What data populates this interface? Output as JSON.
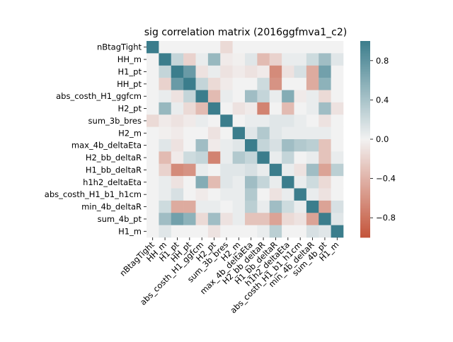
{
  "chart_data": {
    "type": "heatmap",
    "title": "sig correlation matrix (2016ggfmva1_c2)",
    "labels": [
      "nBtagTight",
      "HH_m",
      "H1_pt",
      "HH_pt",
      "abs_costh_H1_ggfcm",
      "H2_pt",
      "sum_3b_bres",
      "H2_m",
      "max_4b_deltaEta",
      "H2_bb_deltaR",
      "H1_bb_deltaR",
      "h1h2_deltaEta",
      "abs_costh_H1_b1_h1cm",
      "min_4b_deltaR",
      "sum_4b_pt",
      "H1_m"
    ],
    "matrix": [
      [
        1.0,
        0.0,
        0.0,
        0.0,
        0.0,
        0.0,
        -0.15,
        0.0,
        0.0,
        0.0,
        0.0,
        0.0,
        0.0,
        0.0,
        0.0,
        0.0
      ],
      [
        0.0,
        1.0,
        0.25,
        -0.2,
        0.05,
        0.5,
        -0.05,
        -0.02,
        0.1,
        -0.35,
        -0.2,
        0.05,
        0.05,
        0.2,
        0.45,
        0.1
      ],
      [
        0.0,
        0.25,
        1.0,
        0.75,
        -0.1,
        0.05,
        -0.1,
        -0.05,
        -0.1,
        -0.05,
        -0.65,
        -0.1,
        0.15,
        -0.45,
        0.7,
        0.0
      ],
      [
        0.0,
        -0.2,
        0.75,
        1.0,
        0.25,
        -0.15,
        -0.05,
        0.0,
        0.0,
        0.2,
        -0.6,
        0.0,
        0.0,
        -0.45,
        0.55,
        0.0
      ],
      [
        0.0,
        0.05,
        -0.1,
        0.25,
        1.0,
        -0.35,
        0.05,
        0.0,
        0.45,
        0.25,
        0.05,
        0.6,
        -0.05,
        0.05,
        -0.15,
        0.0
      ],
      [
        0.0,
        0.5,
        0.05,
        -0.15,
        -0.35,
        1.0,
        0.0,
        -0.1,
        -0.05,
        -0.7,
        0.0,
        -0.35,
        0.0,
        0.05,
        0.45,
        -0.1
      ],
      [
        -0.15,
        -0.05,
        -0.1,
        -0.05,
        0.05,
        0.0,
        1.0,
        0.0,
        0.05,
        0.05,
        0.1,
        0.1,
        0.05,
        0.0,
        -0.1,
        0.0
      ],
      [
        0.0,
        -0.02,
        -0.05,
        0.0,
        0.0,
        -0.1,
        0.0,
        1.0,
        0.1,
        0.35,
        0.1,
        0.05,
        0.05,
        0.05,
        0.05,
        0.0
      ],
      [
        0.0,
        0.1,
        -0.1,
        0.0,
        0.45,
        -0.05,
        0.05,
        0.1,
        1.0,
        0.25,
        0.15,
        0.45,
        0.35,
        0.3,
        -0.3,
        0.0
      ],
      [
        0.0,
        -0.35,
        -0.05,
        0.2,
        0.25,
        -0.7,
        0.05,
        0.35,
        0.25,
        1.0,
        0.05,
        0.25,
        0.0,
        0.05,
        -0.3,
        0.05
      ],
      [
        0.0,
        -0.2,
        -0.65,
        -0.6,
        0.05,
        0.0,
        0.1,
        0.1,
        0.15,
        0.05,
        1.0,
        0.05,
        -0.1,
        0.45,
        -0.5,
        0.3
      ],
      [
        0.0,
        0.05,
        -0.1,
        0.0,
        0.6,
        -0.35,
        0.1,
        0.05,
        0.45,
        0.25,
        0.05,
        1.0,
        0.05,
        0.2,
        -0.15,
        0.0
      ],
      [
        0.0,
        0.05,
        0.15,
        0.0,
        -0.05,
        0.0,
        0.05,
        0.05,
        0.35,
        0.0,
        -0.1,
        0.05,
        1.0,
        0.05,
        -0.1,
        0.0
      ],
      [
        0.0,
        0.2,
        -0.45,
        -0.45,
        0.05,
        0.05,
        0.0,
        0.05,
        0.3,
        0.05,
        0.45,
        0.2,
        0.05,
        1.0,
        -0.5,
        0.15
      ],
      [
        0.0,
        0.45,
        0.7,
        0.55,
        -0.15,
        0.45,
        -0.1,
        0.05,
        -0.3,
        -0.3,
        -0.5,
        -0.15,
        -0.1,
        -0.5,
        1.0,
        0.1
      ],
      [
        0.0,
        0.1,
        0.0,
        0.0,
        0.0,
        -0.1,
        0.0,
        0.0,
        0.0,
        0.05,
        0.3,
        0.0,
        0.0,
        0.15,
        0.1,
        1.0
      ]
    ],
    "vmin": -1.0,
    "vmax": 1.0,
    "colorbar_ticks": [
      "0.8",
      "0.4",
      "0.0",
      "−0.4",
      "−0.8"
    ],
    "colorbar_tick_values": [
      0.8,
      0.4,
      0.0,
      -0.4,
      -0.8
    ],
    "colormap": {
      "negative": "#c4543a",
      "center": "#f2f2f2",
      "positive": "#3b7d8c"
    }
  }
}
